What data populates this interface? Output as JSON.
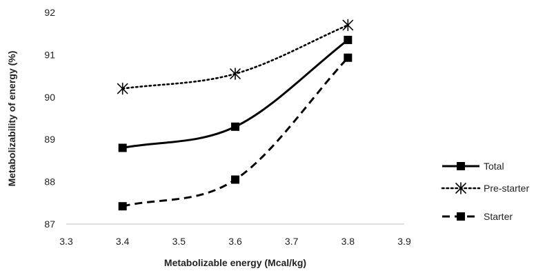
{
  "chart_data": {
    "type": "line",
    "xlabel": "Metabolizable energy (Mcal/kg)",
    "ylabel": "Metabolizability of energy  (%)",
    "xlim": [
      3.3,
      3.9
    ],
    "ylim": [
      87,
      92
    ],
    "x_ticks": [
      "3.3",
      "3.4",
      "3.5",
      "3.6",
      "3.7",
      "3.8",
      "3.9"
    ],
    "y_ticks": [
      "87",
      "88",
      "89",
      "90",
      "91",
      "92"
    ],
    "grid": false,
    "legend_position": "right",
    "x": [
      3.4,
      3.6,
      3.8
    ],
    "series": [
      {
        "name": "Total",
        "values": [
          88.8,
          89.3,
          91.35
        ],
        "style": "solid",
        "marker": "square",
        "color": "#000000"
      },
      {
        "name": "Pre-starter",
        "values": [
          90.2,
          90.55,
          91.7
        ],
        "style": "dotted",
        "marker": "asterisk",
        "color": "#000000"
      },
      {
        "name": "Starter",
        "values": [
          87.42,
          88.05,
          90.93
        ],
        "style": "dashed",
        "marker": "square",
        "color": "#000000"
      }
    ]
  }
}
